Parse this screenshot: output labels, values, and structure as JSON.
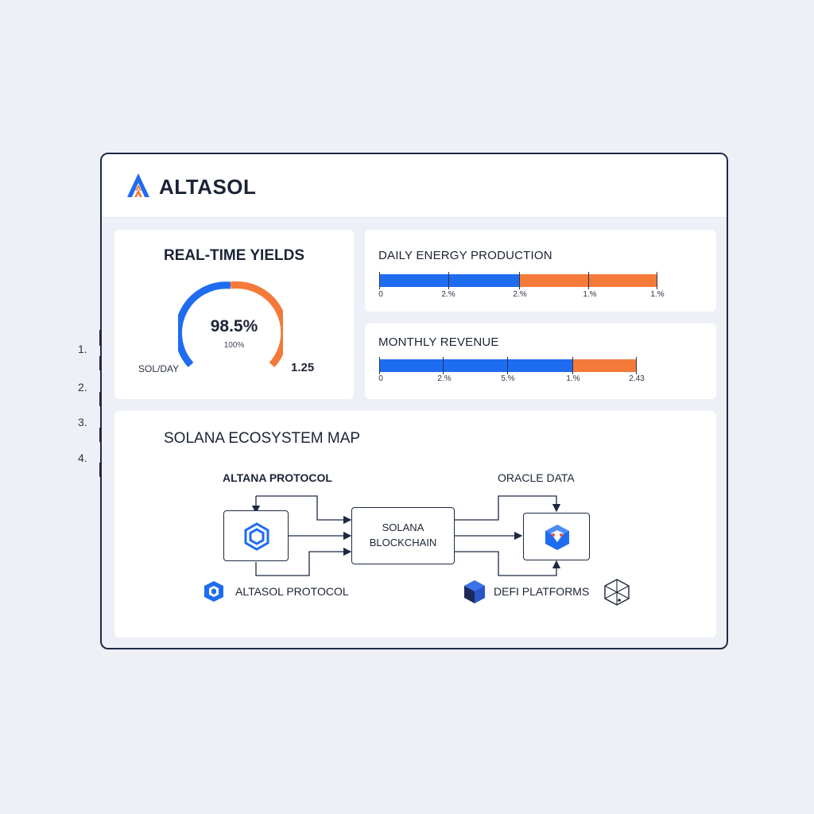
{
  "brand": {
    "name": "ALTASOL"
  },
  "margin_list": [
    "1.",
    "2.",
    "3.",
    "4."
  ],
  "yields": {
    "title": "REAL-TIME YIELDS",
    "gauge_value": "98.5%",
    "gauge_sub": "100%",
    "unit_label": "SOL/DAY",
    "unit_value": "1.25",
    "gauge_fill_percent": 50,
    "colors": {
      "blue": "#1e6cf0",
      "orange": "#f47a3a"
    }
  },
  "energy": {
    "title": "DAILY ENERGY PRODUCTION",
    "tick_labels": [
      "0",
      "2.%",
      "2.%",
      "1.%",
      "1.%"
    ],
    "blue_fraction": 0.5
  },
  "revenue": {
    "title": "MONTHLY REVENUE",
    "tick_labels": [
      "0",
      "2.%",
      "5.%",
      "1.%",
      "2.43"
    ],
    "blue_fraction": 0.75
  },
  "map": {
    "title": "SOLANA ECOSYSTEM MAP",
    "altana_label": "ALTANA PROTOCOL",
    "oracle_label": "ORACLE DATA",
    "center_line1": "SOLANA",
    "center_line2": "BLOCKCHAIN",
    "legend_altasol": "ALTASOL PROTOCOL",
    "legend_defi": "DEFI PLATFORMS",
    "icons": [
      "hexagon-protocol-icon",
      "oracle-cube-icon",
      "altasol-cube-icon",
      "defi-cube-icon",
      "outline-cube-icon"
    ]
  },
  "colors": {
    "blue": "#1e6cf0",
    "orange": "#f47a3a",
    "navy": "#1e2a44"
  }
}
